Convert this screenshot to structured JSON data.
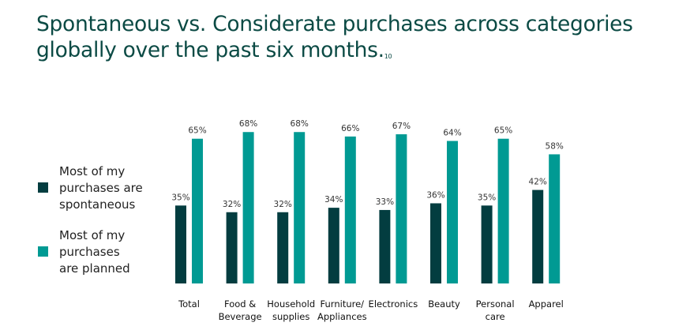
{
  "chart_data": {
    "type": "bar",
    "title": "Spontaneous vs. Considerate purchases across categories globally over the past six months.",
    "title_footnote": "10",
    "categories": [
      [
        "Total"
      ],
      [
        "Food &",
        "Beverage"
      ],
      [
        "Household",
        "supplies"
      ],
      [
        "Furniture/",
        "Appliances"
      ],
      [
        "Electronics"
      ],
      [
        "Beauty"
      ],
      [
        "Personal",
        "care"
      ],
      [
        "Apparel"
      ]
    ],
    "series": [
      {
        "name": "Most of my purchases are spontaneous",
        "legend_lines": [
          "Most of my",
          "purchases are",
          "spontaneous"
        ],
        "color": "#033d40",
        "values": [
          35,
          32,
          32,
          34,
          33,
          36,
          35,
          42
        ]
      },
      {
        "name": "Most of my purchases are planned",
        "legend_lines": [
          "Most of my",
          "purchases",
          "are planned"
        ],
        "color": "#009a93",
        "values": [
          65,
          68,
          68,
          66,
          67,
          64,
          65,
          58
        ]
      }
    ],
    "value_suffix": "%",
    "ylim": [
      0,
      70
    ],
    "grid": false,
    "legend_position": "left",
    "axes_visible": false
  }
}
